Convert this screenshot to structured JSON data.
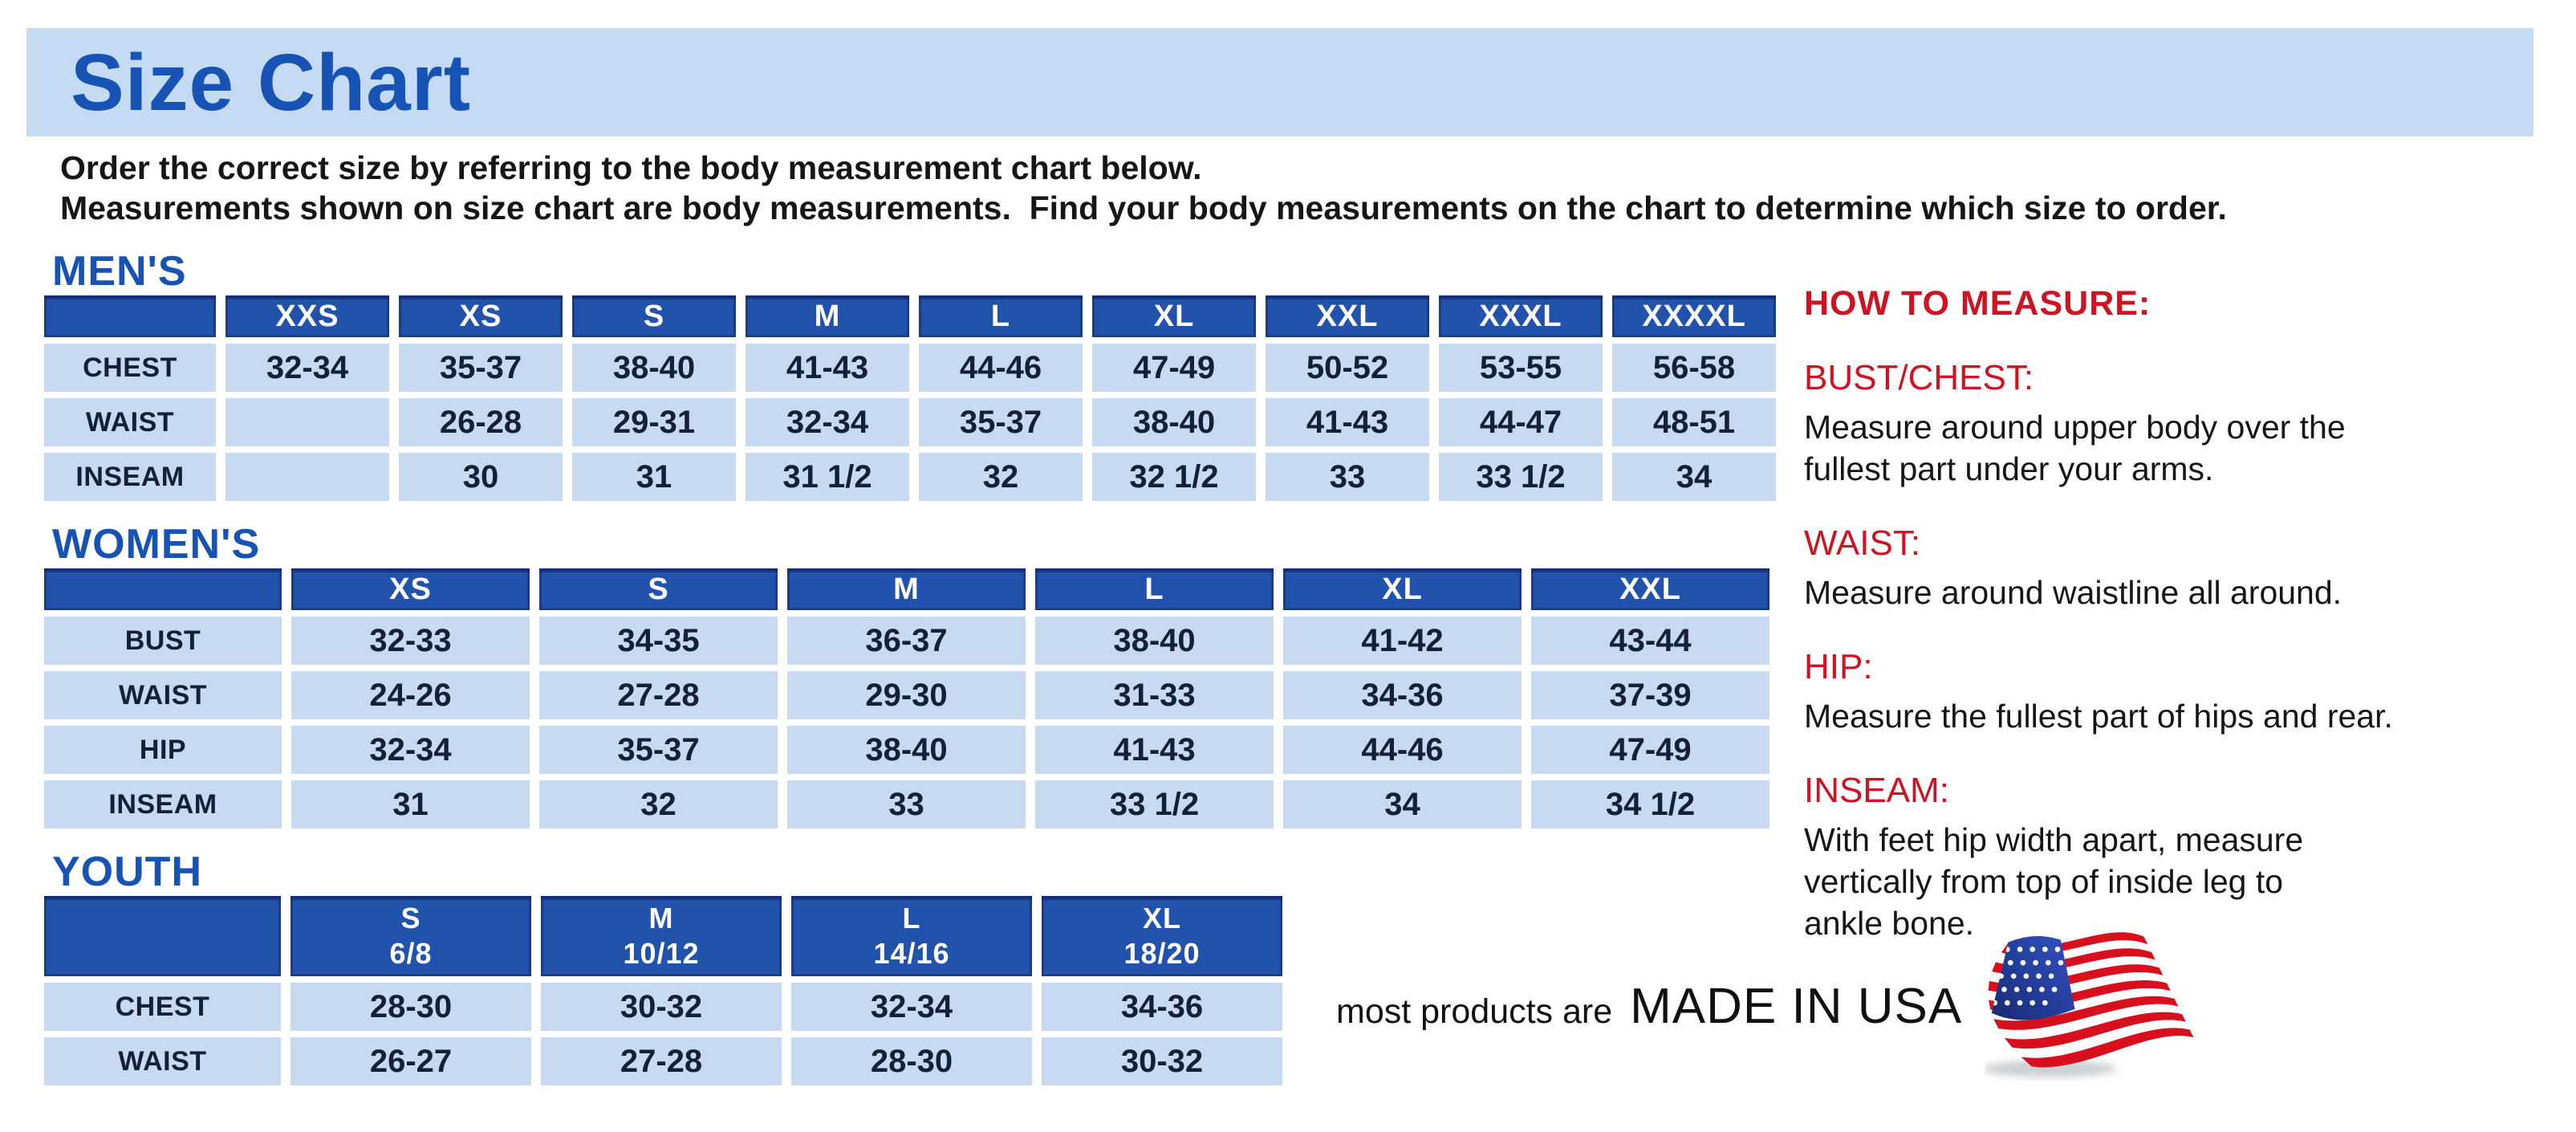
{
  "title": "Size Chart",
  "intro": {
    "line1": "Order the correct size by referring to the body measurement chart below.",
    "line2": "Measurements shown on size chart are body measurements.  Find your body measurements on the chart to determine which size to order."
  },
  "tables": [
    {
      "id": "mens",
      "heading": "MEN'S",
      "columns": [
        "XXS",
        "XS",
        "S",
        "M",
        "L",
        "XL",
        "XXL",
        "XXXL",
        "XXXXL"
      ],
      "rows": [
        {
          "label": "CHEST",
          "values": [
            "32-34",
            "35-37",
            "38-40",
            "41-43",
            "44-46",
            "47-49",
            "50-52",
            "53-55",
            "56-58"
          ]
        },
        {
          "label": "WAIST",
          "values": [
            "",
            "26-28",
            "29-31",
            "32-34",
            "35-37",
            "38-40",
            "41-43",
            "44-47",
            "48-51"
          ]
        },
        {
          "label": "INSEAM",
          "values": [
            "",
            "30",
            "31",
            "31 1/2",
            "32",
            "32 1/2",
            "33",
            "33 1/2",
            "34"
          ]
        }
      ]
    },
    {
      "id": "womens",
      "heading": "WOMEN'S",
      "columns": [
        "XS",
        "S",
        "M",
        "L",
        "XL",
        "XXL"
      ],
      "rows": [
        {
          "label": "BUST",
          "values": [
            "32-33",
            "34-35",
            "36-37",
            "38-40",
            "41-42",
            "43-44"
          ]
        },
        {
          "label": "WAIST",
          "values": [
            "24-26",
            "27-28",
            "29-30",
            "31-33",
            "34-36",
            "37-39"
          ]
        },
        {
          "label": "HIP",
          "values": [
            "32-34",
            "35-37",
            "38-40",
            "41-43",
            "44-46",
            "47-49"
          ]
        },
        {
          "label": "INSEAM",
          "values": [
            "31",
            "32",
            "33",
            "33 1/2",
            "34",
            "34 1/2"
          ]
        }
      ]
    },
    {
      "id": "youth",
      "heading": "YOUTH",
      "columns": [
        "S\n6/8",
        "M\n10/12",
        "L\n14/16",
        "XL\n18/20"
      ],
      "rows": [
        {
          "label": "CHEST",
          "values": [
            "28-30",
            "30-32",
            "32-34",
            "34-36"
          ]
        },
        {
          "label": "WAIST",
          "values": [
            "26-27",
            "27-28",
            "28-30",
            "30-32"
          ]
        }
      ]
    }
  ],
  "how_to_measure": {
    "heading": "HOW TO MEASURE:",
    "items": [
      {
        "label": "BUST/CHEST:",
        "lines": [
          "Measure around upper body over the",
          "fullest part under your arms."
        ]
      },
      {
        "label": "WAIST:",
        "lines": [
          "Measure around waistline all around."
        ]
      },
      {
        "label": "HIP:",
        "lines": [
          "Measure the fullest part of hips and rear."
        ]
      },
      {
        "label": "INSEAM:",
        "lines": [
          "With feet hip width apart, measure",
          "vertically from top of inside leg to",
          "ankle bone."
        ]
      }
    ]
  },
  "footer": {
    "prefix": "most products are",
    "emphasis": "MADE IN USA",
    "flag_icon": "us-flag-icon"
  },
  "colors": {
    "banner_bg": "#c5dbf4",
    "title_blue": "#1753b4",
    "table_header_blue": "#2152ac",
    "table_cell_blue": "#c7daf2",
    "cell_text": "#132038",
    "accent_red": "#cf1322",
    "flag_red": "#d8101e",
    "flag_blue": "#1b3c9e"
  }
}
